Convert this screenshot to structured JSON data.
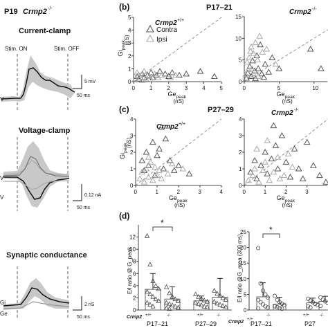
{
  "left": {
    "age_label": "P19",
    "genotype_main": "Crmp2",
    "genotype_sup": "-/-",
    "current_clamp": {
      "title": "Current-clamp",
      "stim_on": "Stim. ON",
      "stim_off": "Stim. OFF",
      "scale_y": "5 mV",
      "scale_x": "50 ms",
      "trace_label": "V"
    },
    "voltage_clamp": {
      "title": "Voltage-clamp",
      "scale_y": "0.12 nA",
      "scale_x": "50 ms",
      "trace_labels": [
        "V",
        "V"
      ]
    },
    "synaptic_conductance": {
      "title": "Synaptic conductance",
      "scale_y": "2 nS",
      "scale_x": "50 ms",
      "trace_labels": [
        "Gi",
        "Ge"
      ]
    }
  },
  "panel_b": {
    "letter": "(b)",
    "age": "P17–21",
    "geno_wt": "Crmp2",
    "geno_wt_sup": "+/+",
    "geno_ko": "Crmp2",
    "geno_ko_sup": "-/-",
    "legend": [
      "Contra",
      "Ipsi"
    ]
  },
  "panel_c": {
    "letter": "(c)",
    "age": "P27–29",
    "geno_wt": "Crmp2",
    "geno_wt_sup": "+/+",
    "geno_ko": "Crmp2",
    "geno_ko_sup": "-/-"
  },
  "panel_d": {
    "letter": "(d)",
    "ylabel_left": "E/I ratio @ G_peak",
    "ylabel_right": "E/I ratio @G_area (300 ms)",
    "sig": "*",
    "row_label": "Crmp2",
    "wt_sup": "+/+",
    "ko_sup": "-/-",
    "groups": [
      "P17–21",
      "P27–29"
    ],
    "right_groups_visible": [
      "P17–21",
      "P27"
    ]
  },
  "colors": {
    "contra": "#555555",
    "ipsi": "#aaaaaa",
    "trace": "#111111",
    "shade": "#c8c8c8"
  },
  "chart_data": [
    {
      "type": "scatter",
      "panel": "b-wt",
      "xlabel": "Ge_peak (nS)",
      "ylabel": "Gi_peak (nS)",
      "xlim": [
        0,
        5
      ],
      "ylim": [
        0,
        5
      ],
      "xticks": [
        0,
        1,
        2,
        3,
        4,
        5
      ],
      "yticks": [
        0,
        1,
        2,
        3,
        4,
        5
      ],
      "identity_line": true,
      "series": [
        {
          "name": "Contra",
          "points": [
            [
              0.2,
              0.4
            ],
            [
              0.3,
              0.2
            ],
            [
              0.5,
              0.6
            ],
            [
              0.6,
              0.3
            ],
            [
              0.8,
              0.5
            ],
            [
              1.0,
              0.7
            ],
            [
              1.1,
              0.3
            ],
            [
              1.3,
              0.5
            ],
            [
              1.5,
              0.8
            ],
            [
              1.8,
              0.6
            ],
            [
              2.0,
              0.4
            ],
            [
              2.2,
              0.7
            ],
            [
              2.6,
              0.5
            ],
            [
              3.0,
              0.6
            ],
            [
              3.8,
              0.8
            ],
            [
              4.6,
              0.4
            ]
          ]
        },
        {
          "name": "Ipsi",
          "points": [
            [
              0.1,
              0.2
            ],
            [
              0.3,
              0.5
            ],
            [
              0.4,
              0.3
            ],
            [
              0.6,
              0.8
            ],
            [
              0.7,
              0.2
            ],
            [
              0.9,
              0.4
            ],
            [
              1.2,
              0.6
            ],
            [
              1.4,
              0.3
            ],
            [
              1.6,
              0.5
            ],
            [
              2.1,
              0.3
            ],
            [
              2.4,
              0.5
            ],
            [
              0.5,
              0.1
            ],
            [
              0.2,
              0.7
            ]
          ]
        }
      ]
    },
    {
      "type": "scatter",
      "panel": "b-ko",
      "xlabel": "Ge_peak (nS)",
      "xlim": [
        0,
        12
      ],
      "ylim": [
        0,
        15
      ],
      "xticks": [
        0,
        5,
        10
      ],
      "yticks": [
        0,
        5,
        10,
        15
      ],
      "identity_line": true,
      "series": [
        {
          "name": "Contra",
          "points": [
            [
              0.5,
              2.0
            ],
            [
              0.8,
              3.5
            ],
            [
              1.0,
              1.2
            ],
            [
              1.2,
              4.8
            ],
            [
              1.5,
              2.5
            ],
            [
              1.8,
              6.0
            ],
            [
              2.0,
              3.0
            ],
            [
              2.3,
              8.5
            ],
            [
              2.5,
              1.8
            ],
            [
              3.0,
              4.0
            ],
            [
              3.5,
              2.2
            ],
            [
              4.0,
              5.5
            ],
            [
              5.0,
              3.0
            ],
            [
              9.5,
              7.5
            ],
            [
              11.0,
              3.0
            ],
            [
              0.3,
              0.8
            ],
            [
              1.6,
              0.7
            ],
            [
              2.8,
              1.0
            ]
          ]
        },
        {
          "name": "Ipsi",
          "points": [
            [
              0.4,
              4.5
            ],
            [
              0.7,
              5.5
            ],
            [
              0.9,
              7.0
            ],
            [
              1.1,
              3.0
            ],
            [
              1.3,
              6.5
            ],
            [
              1.6,
              9.0
            ],
            [
              1.9,
              5.0
            ],
            [
              2.2,
              10.5
            ],
            [
              2.6,
              6.8
            ],
            [
              0.6,
              2.8
            ],
            [
              1.4,
              1.5
            ],
            [
              3.2,
              7.5
            ],
            [
              4.5,
              4.0
            ],
            [
              2.0,
              1.2
            ],
            [
              0.2,
              1.6
            ],
            [
              1.0,
              8.0
            ]
          ]
        }
      ]
    },
    {
      "type": "scatter",
      "panel": "c-wt",
      "xlabel": "Ge_peak (nS)",
      "ylabel": "Gi_peak (nS)",
      "xlim": [
        0,
        4
      ],
      "ylim": [
        0,
        4
      ],
      "xticks": [
        0,
        1,
        2,
        3,
        4
      ],
      "yticks": [
        0,
        1,
        2,
        3,
        4
      ],
      "identity_line": true,
      "series": [
        {
          "name": "Contra",
          "points": [
            [
              0.3,
              1.5
            ],
            [
              0.5,
              2.0
            ],
            [
              0.6,
              1.2
            ],
            [
              0.8,
              2.6
            ],
            [
              1.0,
              1.8
            ],
            [
              1.2,
              3.5
            ],
            [
              1.3,
              1.0
            ],
            [
              1.4,
              2.8
            ],
            [
              1.6,
              1.5
            ],
            [
              1.8,
              0.9
            ],
            [
              2.0,
              1.2
            ],
            [
              0.9,
              0.6
            ],
            [
              0.4,
              0.9
            ],
            [
              2.5,
              0.7
            ],
            [
              1.1,
              2.2
            ]
          ]
        },
        {
          "name": "Ipsi",
          "points": [
            [
              0.2,
              0.4
            ],
            [
              0.3,
              0.8
            ],
            [
              0.4,
              0.2
            ],
            [
              0.5,
              1.0
            ],
            [
              0.6,
              0.5
            ],
            [
              0.7,
              1.4
            ],
            [
              0.8,
              0.3
            ],
            [
              0.9,
              1.1
            ],
            [
              1.0,
              0.6
            ],
            [
              1.1,
              0.9
            ],
            [
              1.2,
              0.4
            ],
            [
              1.5,
              0.7
            ],
            [
              1.7,
              1.3
            ],
            [
              2.2,
              1.0
            ],
            [
              0.6,
              1.7
            ]
          ]
        }
      ]
    },
    {
      "type": "scatter",
      "panel": "c-ko",
      "xlabel": "Ge_peak (nS)",
      "xlim": [
        0,
        4
      ],
      "ylim": [
        0,
        4
      ],
      "xticks": [
        0,
        1,
        2,
        3,
        4
      ],
      "yticks": [
        0,
        1,
        2,
        3,
        4
      ],
      "identity_line": true,
      "series": [
        {
          "name": "Contra",
          "points": [
            [
              0.3,
              0.8
            ],
            [
              0.5,
              1.5
            ],
            [
              0.6,
              0.4
            ],
            [
              0.8,
              1.2
            ],
            [
              1.0,
              2.0
            ],
            [
              1.1,
              0.7
            ],
            [
              1.3,
              1.6
            ],
            [
              1.5,
              2.4
            ],
            [
              1.6,
              1.0
            ],
            [
              1.8,
              3.0
            ],
            [
              2.0,
              1.4
            ],
            [
              2.2,
              0.5
            ],
            [
              2.4,
              2.2
            ],
            [
              2.6,
              1.0
            ],
            [
              3.0,
              2.6
            ],
            [
              3.3,
              1.2
            ],
            [
              3.6,
              0.6
            ],
            [
              1.4,
              3.6
            ],
            [
              2.8,
              0.4
            ],
            [
              3.9,
              0.2
            ]
          ]
        },
        {
          "name": "Ipsi",
          "points": [
            [
              0.2,
              0.3
            ],
            [
              0.4,
              0.6
            ],
            [
              0.5,
              1.0
            ],
            [
              0.7,
              0.2
            ],
            [
              0.9,
              0.9
            ],
            [
              1.0,
              1.4
            ],
            [
              1.2,
              0.3
            ],
            [
              1.4,
              0.8
            ],
            [
              1.6,
              1.7
            ],
            [
              1.9,
              0.6
            ],
            [
              2.1,
              1.9
            ],
            [
              0.6,
              2.2
            ],
            [
              1.7,
              0.4
            ],
            [
              2.3,
              1.1
            ],
            [
              1.1,
              2.7
            ]
          ]
        }
      ]
    },
    {
      "type": "bar",
      "panel": "d-left",
      "ylabel": "E/I ratio @ G_peak",
      "ylim": [
        0,
        14
      ],
      "yticks": [
        0,
        2,
        4,
        6,
        8,
        10,
        12
      ],
      "categories": [
        "P17–21 +/+",
        "P17–21 -/-",
        "P27–29 +/+",
        "P27–29 -/-"
      ],
      "values": [
        3.4,
        1.8,
        1.5,
        2.1
      ],
      "errors": [
        2.6,
        2.0,
        0.8,
        3.1
      ],
      "points": [
        [
          12.2,
          7.5,
          4.8,
          4.0,
          3.5,
          3.0,
          2.6,
          2.2,
          1.8,
          1.5,
          1.2,
          0.9,
          0.6
        ],
        [
          3.8,
          2.8,
          2.2,
          1.8,
          1.5,
          1.2,
          1.0,
          0.8,
          0.6,
          0.4,
          0.3,
          0.2
        ],
        [
          2.6,
          2.2,
          1.9,
          1.6,
          1.4,
          1.2,
          1.0,
          0.8,
          0.6,
          0.5
        ],
        [
          3.2,
          2.7,
          2.4,
          2.0,
          1.7,
          1.4,
          1.1,
          0.9,
          0.7,
          0.5
        ]
      ],
      "significance": "*"
    },
    {
      "type": "bar",
      "panel": "d-right",
      "ylabel": "E/I ratio @G_area (300 ms)",
      "ylim": [
        0,
        25
      ],
      "yticks": [
        0,
        5,
        10,
        15,
        20,
        25
      ],
      "categories": [
        "P17–21 +/+",
        "P17–21 -/-",
        "P27–29 +/+",
        "P27–29 -/-"
      ],
      "values": [
        4.2,
        1.9,
        2.3,
        2.8
      ],
      "errors": [
        4.5,
        2.2,
        1.5,
        1.6
      ],
      "points": [
        [
          19.8,
          8.5,
          6.2,
          5.0,
          4.0,
          3.2,
          2.5,
          1.8,
          1.2,
          0.8,
          0.5
        ],
        [
          4.5,
          3.2,
          2.5,
          2.0,
          1.6,
          1.2,
          0.9,
          0.6,
          0.4
        ],
        [
          3.6,
          3.0,
          2.5,
          2.0,
          1.6,
          1.2,
          0.8
        ],
        [
          4.0,
          3.3,
          2.8,
          2.2,
          1.8,
          1.3
        ]
      ],
      "significance": "*"
    }
  ]
}
